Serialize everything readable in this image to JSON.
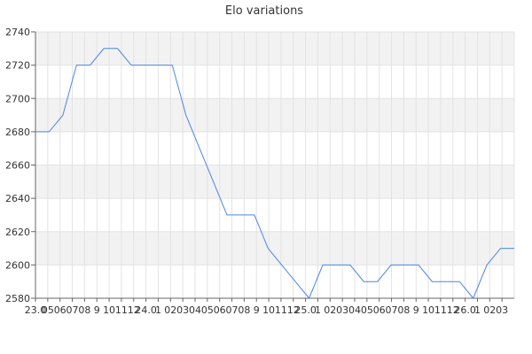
{
  "chart_data": {
    "type": "line",
    "title": "Elo variations",
    "xlabel": "",
    "ylabel": "",
    "ylim": [
      2580,
      2740
    ],
    "yticks": [
      2580,
      2600,
      2620,
      2640,
      2660,
      2680,
      2700,
      2720,
      2740
    ],
    "grid": true,
    "x_tick_labels": [
      "23.0",
      "05",
      "06",
      "07",
      "08",
      "9",
      "10",
      "11",
      "12",
      "24.0",
      "1",
      "02",
      "03",
      "04",
      "05",
      "06",
      "07",
      "08",
      "9",
      "10",
      "11",
      "12",
      "25.0",
      "1",
      "02",
      "03",
      "04",
      "05",
      "06",
      "07",
      "08",
      "9",
      "10",
      "11",
      "12",
      "26.0",
      "1",
      "02",
      "03"
    ],
    "series": [
      {
        "color": "#4a86e8",
        "values": [
          2680,
          2680,
          2690,
          2720,
          2720,
          2730,
          2730,
          2720,
          2720,
          2720,
          2720,
          2690,
          2670,
          2650,
          2630,
          2630,
          2630,
          2610,
          2600,
          2590,
          2580,
          2600,
          2600,
          2600,
          2590,
          2590,
          2600,
          2600,
          2600,
          2590,
          2590,
          2590,
          2580,
          2600,
          2610,
          2610
        ]
      }
    ]
  }
}
